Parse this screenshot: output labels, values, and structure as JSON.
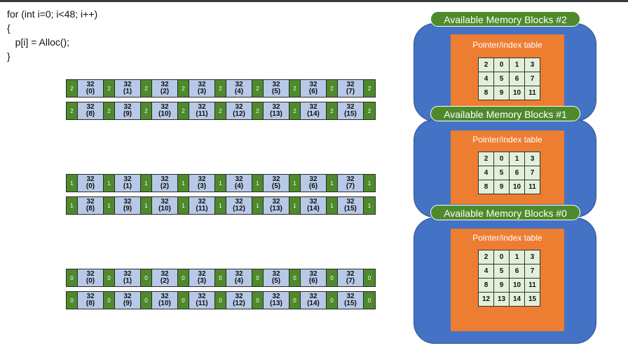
{
  "code": {
    "lines": [
      "for (int i=0; i<48; i++)",
      "{",
      "   p[i] = Alloc();",
      "}"
    ]
  },
  "memory_rows": [
    {
      "id": "row-2-top",
      "header": "2",
      "blocks": [
        [
          "32",
          "(0)"
        ],
        [
          "32",
          "(1)"
        ],
        [
          "32",
          "(2)"
        ],
        [
          "32",
          "(3)"
        ],
        [
          "32",
          "(4)"
        ],
        [
          "32",
          "(5)"
        ],
        [
          "32",
          "(6)"
        ],
        [
          "32",
          "(7)"
        ]
      ]
    },
    {
      "id": "row-2-bottom",
      "header": "2",
      "blocks": [
        [
          "32",
          "(8)"
        ],
        [
          "32",
          "(9)"
        ],
        [
          "32",
          "(10)"
        ],
        [
          "32",
          "(11)"
        ],
        [
          "32",
          "(12)"
        ],
        [
          "32",
          "(13)"
        ],
        [
          "32",
          "(14)"
        ],
        [
          "32",
          "(15)"
        ]
      ]
    },
    {
      "id": "row-1-top",
      "header": "1",
      "blocks": [
        [
          "32",
          "(0)"
        ],
        [
          "32",
          "(1)"
        ],
        [
          "32",
          "(2)"
        ],
        [
          "32",
          "(3)"
        ],
        [
          "32",
          "(4)"
        ],
        [
          "32",
          "(5)"
        ],
        [
          "32",
          "(6)"
        ],
        [
          "32",
          "(7)"
        ]
      ]
    },
    {
      "id": "row-1-bottom",
      "header": "1",
      "blocks": [
        [
          "32",
          "(8)"
        ],
        [
          "32",
          "(9)"
        ],
        [
          "32",
          "(10)"
        ],
        [
          "32",
          "(11)"
        ],
        [
          "32",
          "(12)"
        ],
        [
          "32",
          "(13)"
        ],
        [
          "32",
          "(14)"
        ],
        [
          "32",
          "(15)"
        ]
      ]
    },
    {
      "id": "row-0-top",
      "header": "0",
      "blocks": [
        [
          "32",
          "(0)"
        ],
        [
          "32",
          "(1)"
        ],
        [
          "32",
          "(2)"
        ],
        [
          "32",
          "(3)"
        ],
        [
          "32",
          "(4)"
        ],
        [
          "32",
          "(5)"
        ],
        [
          "32",
          "(6)"
        ],
        [
          "32",
          "(7)"
        ]
      ]
    },
    {
      "id": "row-0-bottom",
      "header": "0",
      "blocks": [
        [
          "32",
          "(8)"
        ],
        [
          "32",
          "(9)"
        ],
        [
          "32",
          "(10)"
        ],
        [
          "32",
          "(11)"
        ],
        [
          "32",
          "(12)"
        ],
        [
          "32",
          "(13)"
        ],
        [
          "32",
          "(14)"
        ],
        [
          "32",
          "(15)"
        ]
      ]
    }
  ],
  "pools": [
    {
      "id": "pool-2",
      "label": "Available Memory Blocks #2",
      "table_title": "Pointer/index table",
      "cells": [
        "2",
        "0",
        "1",
        "3",
        "4",
        "5",
        "6",
        "7",
        "8",
        "9",
        "10",
        "11"
      ]
    },
    {
      "id": "pool-1",
      "label": "Available Memory Blocks #1",
      "table_title": "Pointer/index table",
      "cells": [
        "2",
        "0",
        "1",
        "3",
        "4",
        "5",
        "6",
        "7",
        "8",
        "9",
        "10",
        "11"
      ]
    },
    {
      "id": "pool-0",
      "label": "Available Memory Blocks #0",
      "table_title": "Pointer/index table",
      "cells": [
        "2",
        "0",
        "1",
        "3",
        "4",
        "5",
        "6",
        "7",
        "8",
        "9",
        "10",
        "11",
        "12",
        "13",
        "14",
        "15"
      ]
    }
  ],
  "colors": {
    "header_green": "#4e8a2b",
    "block_blue": "#b7c9e6",
    "pool_blue": "#4472c4",
    "table_orange": "#ed7d31",
    "cell_green": "#e2f0d9"
  }
}
